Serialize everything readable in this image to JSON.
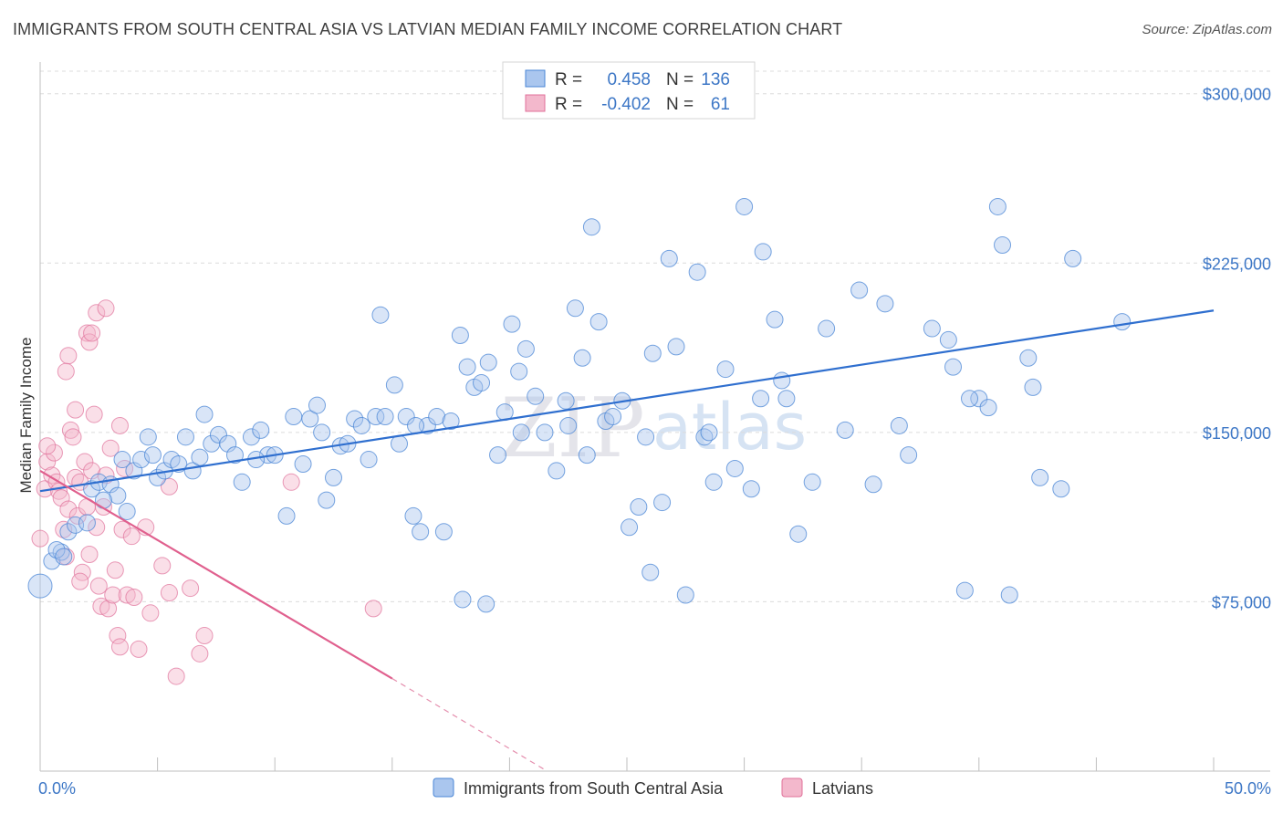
{
  "header": {
    "title": "IMMIGRANTS FROM SOUTH CENTRAL ASIA VS LATVIAN MEDIAN FAMILY INCOME CORRELATION CHART",
    "source": "Source: ZipAtlas.com"
  },
  "watermark": {
    "zip": "ZIP",
    "atlas": "atlas"
  },
  "legend": {
    "r_label": "R =",
    "n_label": "N =",
    "series1": {
      "r": "0.458",
      "n": "136"
    },
    "series2": {
      "r": "-0.402",
      "n": "61"
    }
  },
  "colors": {
    "blue": "#4a86d6",
    "blue_fill": "#aac6ee",
    "pink": "#e0709a",
    "pink_fill": "#f3b8cc",
    "tick_text": "#3d77c6"
  },
  "chart_data": {
    "type": "scatter",
    "title": "IMMIGRANTS FROM SOUTH CENTRAL ASIA VS LATVIAN MEDIAN FAMILY INCOME CORRELATION CHART",
    "xlabel": "",
    "ylabel": "Median Family Income",
    "xlim": [
      0,
      50
    ],
    "ylim": [
      0,
      310000
    ],
    "x_tick_labels": [
      "0.0%",
      "50.0%"
    ],
    "y_ticks": [
      75000,
      150000,
      225000,
      300000
    ],
    "y_tick_labels": [
      "$75,000",
      "$150,000",
      "$225,000",
      "$300,000"
    ],
    "series": [
      {
        "name": "Immigrants from South Central Asia",
        "color": "#4a86d6",
        "r": 0.458,
        "n": 136,
        "trend": {
          "x0": 0,
          "y0": 124000,
          "x1": 50,
          "y1": 204000
        },
        "points": [
          [
            0.0,
            82000
          ],
          [
            0.5,
            93000
          ],
          [
            0.9,
            97000
          ],
          [
            1.2,
            106000
          ],
          [
            1.5,
            109000
          ],
          [
            0.7,
            98000
          ],
          [
            2.0,
            110000
          ],
          [
            2.2,
            125000
          ],
          [
            2.5,
            128000
          ],
          [
            3.0,
            127000
          ],
          [
            3.3,
            122000
          ],
          [
            3.5,
            138000
          ],
          [
            3.7,
            115000
          ],
          [
            4.0,
            133000
          ],
          [
            4.3,
            138000
          ],
          [
            4.6,
            148000
          ],
          [
            5.0,
            130000
          ],
          [
            5.3,
            133000
          ],
          [
            5.6,
            138000
          ],
          [
            5.9,
            136000
          ],
          [
            6.2,
            148000
          ],
          [
            6.5,
            133000
          ],
          [
            7.0,
            158000
          ],
          [
            7.3,
            145000
          ],
          [
            7.6,
            149000
          ],
          [
            8.0,
            145000
          ],
          [
            8.3,
            140000
          ],
          [
            8.6,
            128000
          ],
          [
            9.0,
            148000
          ],
          [
            9.4,
            151000
          ],
          [
            9.7,
            140000
          ],
          [
            10.0,
            140000
          ],
          [
            10.5,
            113000
          ],
          [
            10.8,
            157000
          ],
          [
            11.2,
            136000
          ],
          [
            11.5,
            156000
          ],
          [
            11.8,
            162000
          ],
          [
            12.2,
            120000
          ],
          [
            12.5,
            130000
          ],
          [
            12.8,
            144000
          ],
          [
            13.1,
            145000
          ],
          [
            13.4,
            156000
          ],
          [
            13.7,
            153000
          ],
          [
            14.0,
            138000
          ],
          [
            14.3,
            157000
          ],
          [
            14.7,
            157000
          ],
          [
            15.1,
            171000
          ],
          [
            15.3,
            145000
          ],
          [
            15.6,
            157000
          ],
          [
            15.9,
            113000
          ],
          [
            16.2,
            106000
          ],
          [
            16.5,
            153000
          ],
          [
            16.9,
            157000
          ],
          [
            17.2,
            106000
          ],
          [
            17.5,
            155000
          ],
          [
            17.9,
            193000
          ],
          [
            18.2,
            179000
          ],
          [
            18.5,
            170000
          ],
          [
            18.8,
            172000
          ],
          [
            19.1,
            181000
          ],
          [
            19.5,
            140000
          ],
          [
            19.8,
            159000
          ],
          [
            20.1,
            198000
          ],
          [
            20.4,
            177000
          ],
          [
            20.7,
            187000
          ],
          [
            21.1,
            166000
          ],
          [
            21.5,
            150000
          ],
          [
            22.0,
            133000
          ],
          [
            22.4,
            164000
          ],
          [
            22.8,
            205000
          ],
          [
            23.1,
            183000
          ],
          [
            23.5,
            241000
          ],
          [
            23.8,
            199000
          ],
          [
            24.1,
            155000
          ],
          [
            24.4,
            157000
          ],
          [
            24.8,
            164000
          ],
          [
            25.1,
            108000
          ],
          [
            25.5,
            117000
          ],
          [
            25.8,
            148000
          ],
          [
            26.1,
            185000
          ],
          [
            26.5,
            119000
          ],
          [
            26.8,
            227000
          ],
          [
            27.1,
            188000
          ],
          [
            27.5,
            78000
          ],
          [
            28.0,
            221000
          ],
          [
            28.3,
            148000
          ],
          [
            28.7,
            128000
          ],
          [
            29.2,
            178000
          ],
          [
            29.6,
            134000
          ],
          [
            30.0,
            250000
          ],
          [
            30.3,
            125000
          ],
          [
            30.8,
            230000
          ],
          [
            31.3,
            200000
          ],
          [
            31.6,
            173000
          ],
          [
            31.8,
            165000
          ],
          [
            32.3,
            105000
          ],
          [
            32.9,
            128000
          ],
          [
            33.5,
            196000
          ],
          [
            34.3,
            151000
          ],
          [
            34.9,
            213000
          ],
          [
            35.5,
            127000
          ],
          [
            36.0,
            207000
          ],
          [
            37.0,
            140000
          ],
          [
            38.0,
            196000
          ],
          [
            38.7,
            191000
          ],
          [
            38.9,
            179000
          ],
          [
            39.4,
            80000
          ],
          [
            40.0,
            165000
          ],
          [
            40.4,
            161000
          ],
          [
            40.8,
            250000
          ],
          [
            41.0,
            233000
          ],
          [
            41.3,
            78000
          ],
          [
            42.1,
            183000
          ],
          [
            42.3,
            170000
          ],
          [
            42.6,
            130000
          ],
          [
            43.5,
            125000
          ],
          [
            44.0,
            227000
          ],
          [
            46.1,
            199000
          ],
          [
            18.0,
            76000
          ],
          [
            19.0,
            74000
          ],
          [
            26.0,
            88000
          ],
          [
            20.5,
            150000
          ],
          [
            1.0,
            95000
          ],
          [
            2.7,
            120000
          ],
          [
            4.8,
            140000
          ],
          [
            6.8,
            139000
          ],
          [
            9.2,
            138000
          ],
          [
            12.0,
            150000
          ],
          [
            14.5,
            202000
          ],
          [
            16.0,
            153000
          ],
          [
            23.3,
            140000
          ],
          [
            28.5,
            150000
          ],
          [
            36.6,
            153000
          ],
          [
            39.6,
            165000
          ],
          [
            30.7,
            165000
          ],
          [
            22.5,
            153000
          ]
        ]
      },
      {
        "name": "Latvians",
        "color": "#e0709a",
        "r": -0.402,
        "n": 61,
        "trend": {
          "x0": 0,
          "y0": 133000,
          "x1": 15,
          "y1": 41000,
          "dash_x1": 21.6,
          "dash_y1": 0
        },
        "points": [
          [
            0.0,
            103000
          ],
          [
            0.2,
            125000
          ],
          [
            0.3,
            137000
          ],
          [
            0.5,
            131000
          ],
          [
            0.6,
            141000
          ],
          [
            0.7,
            128000
          ],
          [
            0.8,
            124000
          ],
          [
            0.9,
            121000
          ],
          [
            1.0,
            107000
          ],
          [
            1.1,
            95000
          ],
          [
            1.2,
            116000
          ],
          [
            1.3,
            151000
          ],
          [
            1.4,
            148000
          ],
          [
            1.5,
            130000
          ],
          [
            1.6,
            113000
          ],
          [
            1.7,
            128000
          ],
          [
            1.8,
            88000
          ],
          [
            1.9,
            137000
          ],
          [
            2.0,
            117000
          ],
          [
            2.1,
            96000
          ],
          [
            2.2,
            133000
          ],
          [
            2.3,
            158000
          ],
          [
            2.4,
            108000
          ],
          [
            2.5,
            82000
          ],
          [
            2.6,
            73000
          ],
          [
            2.7,
            117000
          ],
          [
            2.8,
            131000
          ],
          [
            2.9,
            72000
          ],
          [
            3.0,
            143000
          ],
          [
            3.1,
            78000
          ],
          [
            3.2,
            89000
          ],
          [
            3.3,
            60000
          ],
          [
            3.4,
            55000
          ],
          [
            3.5,
            107000
          ],
          [
            3.6,
            134000
          ],
          [
            3.7,
            78000
          ],
          [
            3.9,
            104000
          ],
          [
            4.0,
            77000
          ],
          [
            4.2,
            54000
          ],
          [
            4.5,
            108000
          ],
          [
            4.7,
            70000
          ],
          [
            5.2,
            91000
          ],
          [
            5.5,
            79000
          ],
          [
            5.8,
            42000
          ],
          [
            6.4,
            81000
          ],
          [
            6.8,
            52000
          ],
          [
            7.0,
            60000
          ],
          [
            1.7,
            84000
          ],
          [
            2.0,
            194000
          ],
          [
            2.1,
            190000
          ],
          [
            2.2,
            194000
          ],
          [
            2.4,
            203000
          ],
          [
            1.2,
            184000
          ],
          [
            1.5,
            160000
          ],
          [
            0.3,
            144000
          ],
          [
            1.1,
            177000
          ],
          [
            2.8,
            205000
          ],
          [
            3.4,
            153000
          ],
          [
            5.5,
            126000
          ],
          [
            10.7,
            128000
          ],
          [
            14.2,
            72000
          ]
        ]
      }
    ]
  },
  "bottom_legend": {
    "series1_label": "Immigrants from South Central Asia",
    "series2_label": "Latvians"
  }
}
